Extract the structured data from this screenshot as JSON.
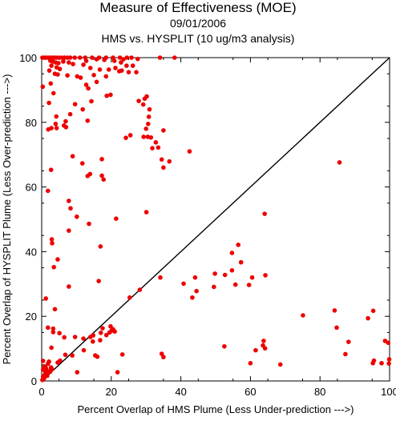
{
  "chart_data": {
    "type": "scatter",
    "title": "Measure of Effectiveness (MOE)",
    "subtitle_date": "09/01/2006",
    "subtitle_comparison": "HMS vs. HYSPLIT  (10 ug/m3 analysis)",
    "xlabel": "Percent Overlap of HMS Plume (Less Under-prediction --->)",
    "ylabel": "Percent Overlap of HYSPLIT Plume (Less Over-prediction --->)",
    "xlim": [
      0,
      100
    ],
    "ylim": [
      0,
      100
    ],
    "x_ticks": [
      "0",
      "20",
      "40",
      "60",
      "80",
      "100"
    ],
    "y_ticks": [
      "0",
      "20",
      "40",
      "60",
      "80",
      "100"
    ],
    "grid": false,
    "reference_line": "diagonal y = x",
    "point_color": "#ee0000",
    "points": [
      [
        0.2,
        100
      ],
      [
        0.8,
        100
      ],
      [
        1.2,
        100
      ],
      [
        1.8,
        100
      ],
      [
        2.4,
        100
      ],
      [
        3.0,
        100
      ],
      [
        3.6,
        100
      ],
      [
        4.2,
        100
      ],
      [
        5.0,
        100
      ],
      [
        5.8,
        100
      ],
      [
        6.6,
        100
      ],
      [
        7.4,
        100
      ],
      [
        8.2,
        100
      ],
      [
        9.5,
        100
      ],
      [
        11.0,
        100
      ],
      [
        12.5,
        100
      ],
      [
        14.5,
        100
      ],
      [
        16.5,
        100
      ],
      [
        18.5,
        100
      ],
      [
        20.5,
        100
      ],
      [
        22.5,
        100
      ],
      [
        24.5,
        100
      ],
      [
        25.8,
        100
      ],
      [
        27.6,
        99.6
      ],
      [
        34,
        100
      ],
      [
        38.2,
        100
      ],
      [
        2.5,
        99
      ],
      [
        3.2,
        98.8
      ],
      [
        4.0,
        98.5
      ],
      [
        4.8,
        98.3
      ],
      [
        6.2,
        98.8
      ],
      [
        7.8,
        98.5
      ],
      [
        9,
        98
      ],
      [
        12.8,
        99
      ],
      [
        15.8,
        99.5
      ],
      [
        18,
        99.3
      ],
      [
        20.9,
        99
      ],
      [
        23.5,
        99.5
      ],
      [
        2.8,
        97.5
      ],
      [
        4.3,
        97
      ],
      [
        5.2,
        96.5
      ],
      [
        2.2,
        96
      ],
      [
        22.8,
        98.5
      ],
      [
        24.4,
        97.5
      ],
      [
        26.2,
        97.5
      ],
      [
        12,
        97.8
      ],
      [
        14,
        96.8
      ],
      [
        16.7,
        96.3
      ],
      [
        19.3,
        96.3
      ],
      [
        21.2,
        96.8
      ],
      [
        23,
        96
      ],
      [
        25,
        95.5
      ],
      [
        27.2,
        95.5
      ],
      [
        22.3,
        95.8
      ],
      [
        3.8,
        95
      ],
      [
        4.6,
        94.8
      ],
      [
        7.4,
        94.5
      ],
      [
        10.2,
        94.2
      ],
      [
        11.2,
        93.8
      ],
      [
        15,
        94.6
      ],
      [
        18.5,
        94.2
      ],
      [
        0.3,
        91
      ],
      [
        2.6,
        92
      ],
      [
        12.8,
        91.6
      ],
      [
        13.4,
        90.5
      ],
      [
        15.8,
        92.5
      ],
      [
        18.7,
        88.2
      ],
      [
        19.8,
        88.5
      ],
      [
        3.4,
        89
      ],
      [
        14.3,
        86.5
      ],
      [
        27.9,
        86.6
      ],
      [
        29.2,
        85.5
      ],
      [
        9.6,
        85.6
      ],
      [
        2.1,
        86
      ],
      [
        11.8,
        84
      ],
      [
        8.2,
        82.5
      ],
      [
        13.2,
        80.5
      ],
      [
        4.2,
        81.8
      ],
      [
        6.9,
        80.3
      ],
      [
        29.6,
        87.3
      ],
      [
        30.2,
        88
      ],
      [
        31,
        84
      ],
      [
        30.8,
        81.7
      ],
      [
        30.6,
        79.5
      ],
      [
        30,
        78
      ],
      [
        35,
        77.5
      ],
      [
        4,
        79.5
      ],
      [
        4.3,
        78.2
      ],
      [
        7,
        78.5
      ],
      [
        6.4,
        79
      ],
      [
        2.8,
        78.2
      ],
      [
        1.9,
        77.8
      ],
      [
        24.2,
        75.2
      ],
      [
        25.5,
        76
      ],
      [
        29.3,
        75.5
      ],
      [
        30.5,
        75.5
      ],
      [
        31.4,
        75.3
      ],
      [
        32.8,
        73.8
      ],
      [
        31.8,
        72
      ],
      [
        33.5,
        72.2
      ],
      [
        42.5,
        71
      ],
      [
        8.9,
        69.5
      ],
      [
        17.3,
        68.6
      ],
      [
        34.5,
        68.5
      ],
      [
        36.7,
        67.9
      ],
      [
        85.6,
        67.6
      ],
      [
        11.7,
        67.3
      ],
      [
        35,
        66
      ],
      [
        2.7,
        65.3
      ],
      [
        13.2,
        63.4
      ],
      [
        13.9,
        64
      ],
      [
        17.3,
        63.5
      ],
      [
        17.8,
        62.3
      ],
      [
        1.8,
        58.8
      ],
      [
        7.8,
        55.7
      ],
      [
        8.3,
        53.4
      ],
      [
        21.4,
        50.2
      ],
      [
        10.1,
        50.8
      ],
      [
        30.1,
        52.2
      ],
      [
        64.1,
        51.7
      ],
      [
        13.6,
        48.6
      ],
      [
        7.8,
        46.5
      ],
      [
        2.9,
        43.8
      ],
      [
        3.0,
        42.6
      ],
      [
        16.9,
        41.6
      ],
      [
        56.5,
        42.1
      ],
      [
        54.7,
        39.6
      ],
      [
        4.6,
        37.6
      ],
      [
        3.5,
        35.2
      ],
      [
        57.3,
        36.7
      ],
      [
        54.7,
        34.2
      ],
      [
        49.8,
        33.2
      ],
      [
        52.7,
        32.8
      ],
      [
        64.3,
        32.7
      ],
      [
        60.5,
        32
      ],
      [
        44.1,
        32
      ],
      [
        34.1,
        32
      ],
      [
        16.4,
        30.9
      ],
      [
        40.8,
        30.1
      ],
      [
        55.7,
        29.8
      ],
      [
        49.5,
        29.1
      ],
      [
        59.6,
        29.7
      ],
      [
        7.8,
        29.2
      ],
      [
        28.2,
        28.2
      ],
      [
        44.5,
        27.8
      ],
      [
        43.3,
        25.8
      ],
      [
        25.3,
        25.8
      ],
      [
        1.2,
        25.5
      ],
      [
        3.8,
        22.2
      ],
      [
        14.0,
        13.6
      ],
      [
        84.2,
        21.8
      ],
      [
        75.1,
        20.3
      ],
      [
        95.3,
        21.7
      ],
      [
        84.8,
        16.5
      ],
      [
        93.8,
        19.4
      ],
      [
        17.5,
        16.3
      ],
      [
        19.8,
        16.9
      ],
      [
        20.1,
        15.6
      ],
      [
        20.5,
        16
      ],
      [
        21.0,
        15.3
      ],
      [
        19.5,
        15
      ],
      [
        18.6,
        14.2
      ],
      [
        16.8,
        12.6
      ],
      [
        17,
        14.9
      ],
      [
        14.8,
        14.1
      ],
      [
        1.8,
        16.5
      ],
      [
        3.3,
        16.2
      ],
      [
        3.3,
        15.1
      ],
      [
        5.1,
        14.8
      ],
      [
        6.5,
        13.5
      ],
      [
        9.6,
        13.6
      ],
      [
        12,
        13.1
      ],
      [
        12.1,
        9.5
      ],
      [
        14.7,
        12.2
      ],
      [
        52.5,
        10.7
      ],
      [
        63.8,
        12.4
      ],
      [
        63.6,
        11
      ],
      [
        64.2,
        10.1
      ],
      [
        88.2,
        12.1
      ],
      [
        98.7,
        12.4
      ],
      [
        99.6,
        11.8
      ],
      [
        2.8,
        10.3
      ],
      [
        6.8,
        8.1
      ],
      [
        8.8,
        7.9
      ],
      [
        15.4,
        7.9
      ],
      [
        16,
        7.5
      ],
      [
        23.2,
        8.2
      ],
      [
        35,
        7.4
      ],
      [
        34.5,
        8.4
      ],
      [
        0.4,
        6.2
      ],
      [
        2.1,
        6.0
      ],
      [
        4.6,
        5.7
      ],
      [
        5.3,
        6.3
      ],
      [
        1.8,
        5.3
      ],
      [
        0.8,
        4.5
      ],
      [
        0.4,
        3.5
      ],
      [
        2.6,
        3.4
      ],
      [
        1.6,
        2.9
      ],
      [
        2.4,
        2.8
      ],
      [
        1.1,
        2.5
      ],
      [
        0.9,
        1.9
      ],
      [
        1.6,
        1.6
      ],
      [
        0.4,
        1.4
      ],
      [
        0.7,
        0.8
      ],
      [
        0.2,
        0.3
      ],
      [
        2.7,
        4.2
      ],
      [
        2.9,
        3.7
      ],
      [
        1.3,
        3.8
      ],
      [
        0.6,
        4.0
      ],
      [
        1.3,
        2.2
      ],
      [
        1.0,
        4.4
      ],
      [
        10.2,
        2.7
      ],
      [
        21.8,
        2.7
      ],
      [
        60,
        5.5
      ],
      [
        68.6,
        5.1
      ],
      [
        87.3,
        8.3
      ],
      [
        97.7,
        5.5
      ],
      [
        95.5,
        6.3
      ],
      [
        95.2,
        5.5
      ],
      [
        99.9,
        6.7
      ],
      [
        99.8,
        5.4
      ],
      [
        61.5,
        9.5
      ]
    ]
  }
}
